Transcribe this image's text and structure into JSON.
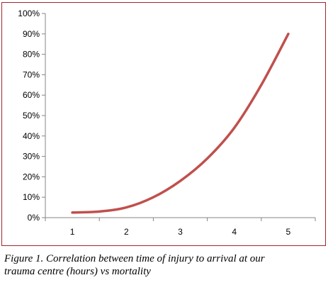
{
  "chart_data": {
    "type": "line",
    "x": [
      1,
      1.5,
      2,
      2.5,
      3,
      3.5,
      4,
      4.5,
      5
    ],
    "categories": [
      "1",
      "2",
      "3",
      "4",
      "5"
    ],
    "series": [
      {
        "values": [
          0.025,
          0.03,
          0.05,
          0.1,
          0.18,
          0.29,
          0.44,
          0.65,
          0.9
        ]
      }
    ],
    "ylim": [
      0,
      1
    ],
    "yticks": [
      "0%",
      "10%",
      "20%",
      "30%",
      "40%",
      "50%",
      "60%",
      "70%",
      "80%",
      "90%",
      "100%"
    ],
    "title": "",
    "xlabel": "",
    "ylabel": "",
    "grid": false,
    "legend": "none",
    "line_color": "#c0504d",
    "frame_color": "#a0262a"
  },
  "caption": {
    "line1": "Figure 1. Correlation between time of injury to arrival at our",
    "line2": "trauma centre (hours) vs mortality"
  }
}
